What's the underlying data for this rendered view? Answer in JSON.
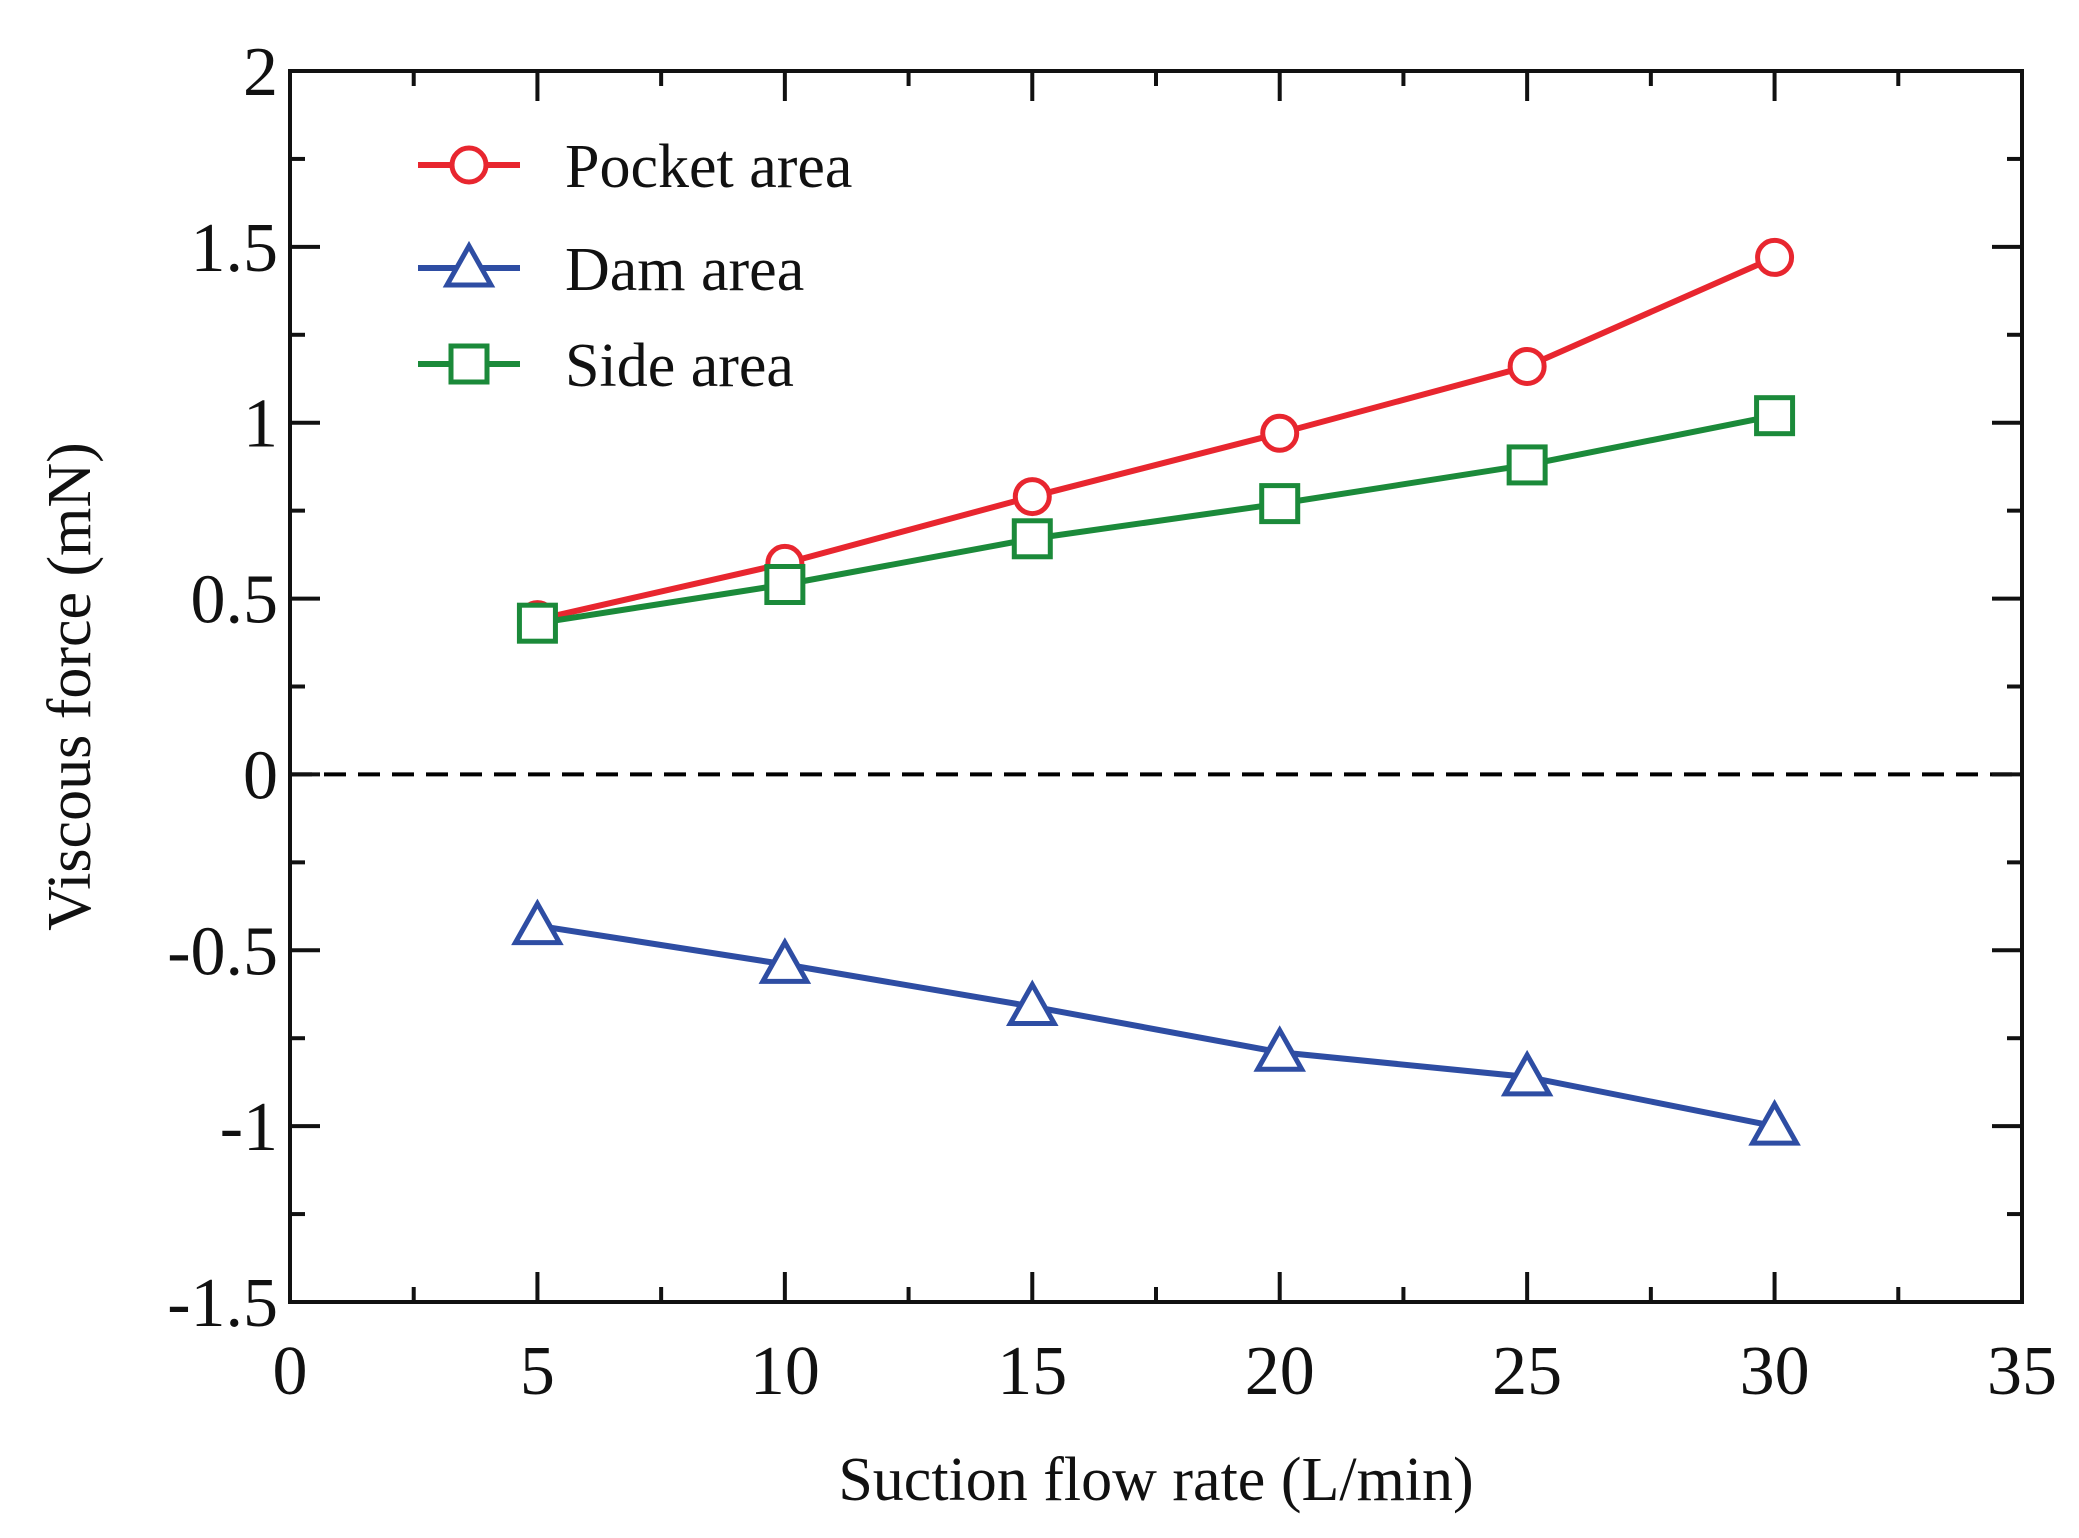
{
  "chart_data": {
    "type": "line",
    "title": "",
    "xlabel": "Suction flow rate (L/min)",
    "ylabel": "Viscous force (mN)",
    "xlim": [
      0,
      35
    ],
    "ylim": [
      -1.5,
      2
    ],
    "x_ticks": [
      0,
      5,
      10,
      15,
      20,
      25,
      30,
      35
    ],
    "x_tick_labels": [
      "0",
      "5",
      "10",
      "15",
      "20",
      "25",
      "30",
      "35"
    ],
    "y_ticks": [
      -1.5,
      -1,
      -0.5,
      0,
      0.5,
      1,
      1.5,
      2
    ],
    "y_tick_labels": [
      "-1.5",
      "-1",
      "-0.5",
      "0",
      "0.5",
      "1",
      "1.5",
      "2"
    ],
    "grid": false,
    "legend_position": "top-left",
    "reference_line": {
      "y": 0,
      "style": "dashed",
      "color": "#000000"
    },
    "x": [
      5,
      10,
      15,
      20,
      25,
      30
    ],
    "series": [
      {
        "name": "Pocket area",
        "marker": "circle",
        "color": "#e8262f",
        "values": [
          0.44,
          0.6,
          0.79,
          0.97,
          1.16,
          1.47
        ]
      },
      {
        "name": "Dam area",
        "marker": "triangle",
        "color": "#2e4da3",
        "values": [
          -0.43,
          -0.54,
          -0.66,
          -0.79,
          -0.86,
          -1.0
        ]
      },
      {
        "name": "Side area",
        "marker": "square",
        "color": "#1b8a3a",
        "values": [
          0.43,
          0.54,
          0.67,
          0.77,
          0.88,
          1.02
        ]
      }
    ]
  }
}
